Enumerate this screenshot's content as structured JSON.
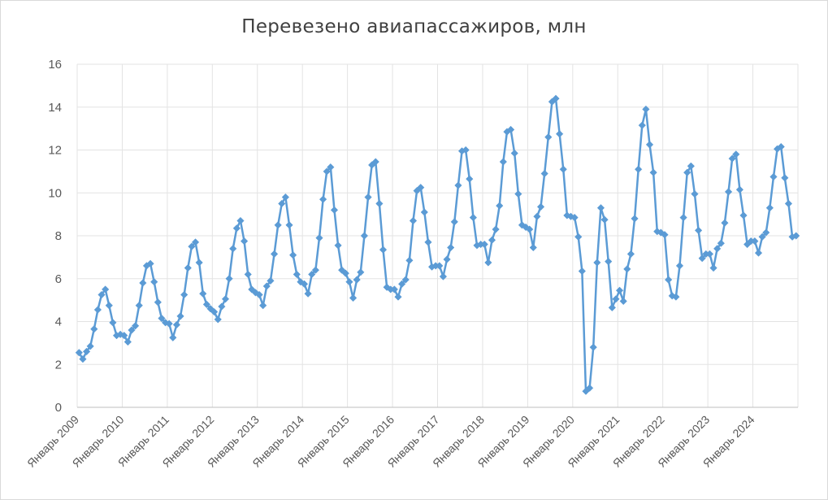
{
  "chart_data": {
    "type": "line",
    "title": "Перевезено авиапассажиров, млн",
    "xlabel": "",
    "ylabel": "",
    "ylim": [
      0,
      16
    ],
    "y_ticks": [
      0,
      2,
      4,
      6,
      8,
      10,
      12,
      14,
      16
    ],
    "grid": true,
    "legend": "none",
    "line_color": "#5b9bd5",
    "x_tick_labels": [
      "Январь 2009",
      "Январь 2010",
      "Январь 2011",
      "Январь 2012",
      "Январь 2013",
      "Январь 2014",
      "Январь 2015",
      "Январь 2016",
      "Январь 2017",
      "Январь 2018",
      "Январь 2019",
      "Январь 2020",
      "Январь 2021",
      "Январь 2022",
      "Январь 2023",
      "Январь 2024"
    ],
    "series": [
      {
        "start": "Январь 2009",
        "frequency": "monthly",
        "values": [
          2.55,
          2.25,
          2.6,
          2.85,
          3.65,
          4.55,
          5.25,
          5.5,
          4.75,
          3.95,
          3.35,
          3.4,
          3.35,
          3.05,
          3.6,
          3.8,
          4.75,
          5.8,
          6.6,
          6.7,
          5.85,
          4.9,
          4.15,
          3.95,
          3.9,
          3.25,
          3.85,
          4.25,
          5.25,
          6.5,
          7.5,
          7.7,
          6.75,
          5.3,
          4.8,
          4.6,
          4.45,
          4.1,
          4.7,
          5.05,
          6.0,
          7.4,
          8.35,
          8.7,
          7.75,
          6.2,
          5.5,
          5.35,
          5.25,
          4.75,
          5.65,
          5.9,
          7.15,
          8.5,
          9.5,
          9.8,
          8.5,
          7.1,
          6.2,
          5.85,
          5.75,
          5.3,
          6.2,
          6.4,
          7.9,
          9.7,
          11.0,
          11.2,
          9.2,
          7.55,
          6.4,
          6.25,
          5.85,
          5.1,
          5.95,
          6.3,
          8.0,
          9.8,
          11.3,
          11.45,
          9.5,
          7.35,
          5.6,
          5.5,
          5.5,
          5.15,
          5.75,
          5.95,
          6.85,
          8.7,
          10.1,
          10.25,
          9.1,
          7.7,
          6.55,
          6.6,
          6.6,
          6.1,
          6.9,
          7.45,
          8.65,
          10.35,
          11.95,
          12.0,
          10.65,
          8.85,
          7.55,
          7.6,
          7.6,
          6.75,
          7.8,
          8.3,
          9.4,
          11.45,
          12.85,
          12.95,
          11.85,
          9.95,
          8.5,
          8.4,
          8.3,
          7.45,
          8.9,
          9.35,
          10.9,
          12.6,
          14.25,
          14.4,
          12.75,
          11.1,
          8.95,
          8.9,
          8.85,
          7.95,
          6.35,
          0.75,
          0.9,
          2.8,
          6.75,
          9.3,
          8.75,
          6.8,
          4.65,
          5.05,
          5.45,
          4.95,
          6.45,
          7.15,
          8.8,
          11.1,
          13.15,
          13.9,
          12.25,
          10.95,
          8.2,
          8.15,
          8.05,
          5.95,
          5.2,
          5.15,
          6.6,
          8.85,
          10.95,
          11.25,
          9.95,
          8.25,
          6.95,
          7.15,
          7.15,
          6.5,
          7.4,
          7.65,
          8.6,
          10.05,
          11.6,
          11.8,
          10.15,
          8.95,
          7.6,
          7.75,
          7.75,
          7.2,
          7.95,
          8.15,
          9.3,
          10.75,
          12.05,
          12.15,
          10.7,
          9.5,
          7.95,
          8.0
        ]
      }
    ]
  }
}
